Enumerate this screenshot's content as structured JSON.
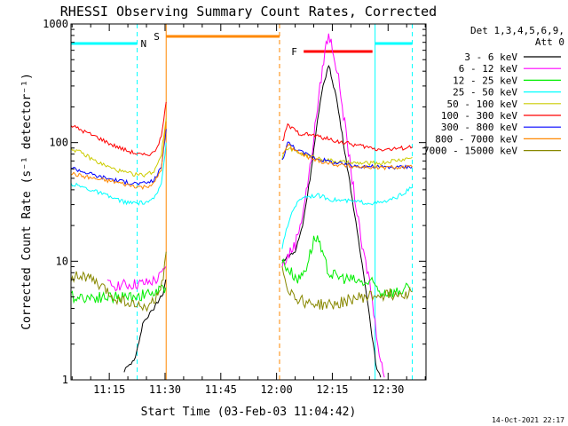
{
  "chart_data": {
    "type": "line",
    "title": "RHESSI Observing Summary Count Rates, Corrected",
    "xlabel": "Start Time (03-Feb-03 11:04:42)",
    "ylabel": "Corrected Count Rate (s⁻¹ detector⁻¹)",
    "yscale": "log",
    "xlim_minutes_after_11": [
      4.7,
      45.0
    ],
    "ylim": [
      1,
      1000
    ],
    "x_ticks": [
      {
        "m": 15,
        "label": "11:15"
      },
      {
        "m": 30,
        "label": "11:30"
      },
      {
        "m": 45,
        "label": "11:45"
      },
      {
        "m": 60,
        "label": "12:00"
      },
      {
        "m": 75,
        "label": "12:15"
      },
      {
        "m": 90,
        "label": "12:30"
      }
    ],
    "y_ticks": [
      {
        "v": 1,
        "label": "1"
      },
      {
        "v": 10,
        "label": "10"
      },
      {
        "v": 100,
        "label": "100"
      },
      {
        "v": 1000,
        "label": "1000"
      }
    ],
    "legend": {
      "header": [
        "Det 1,3,4,5,6,9,",
        "Att 0"
      ],
      "placement": "right",
      "entries": [
        {
          "label": "3 - 6 keV",
          "color": "#000000"
        },
        {
          "label": "6 - 12 keV",
          "color": "#ff00ff"
        },
        {
          "label": "12 - 25 keV",
          "color": "#00ee00"
        },
        {
          "label": "25 - 50 keV",
          "color": "#00ffff"
        },
        {
          "label": "50 - 100 keV",
          "color": "#cccc00"
        },
        {
          "label": "100 - 300 keV",
          "color": "#ff0000"
        },
        {
          "label": "300 - 800 keV",
          "color": "#0000ff"
        },
        {
          "label": "800 - 7000 keV",
          "color": "#ff8800"
        },
        {
          "label": "7000 - 15000 keV",
          "color": "#888800"
        }
      ]
    },
    "flags": [
      {
        "label": "N",
        "color": "#00ffff",
        "spans": [
          [
            4.7,
            22.5
          ],
          [
            86.5,
            96.5
          ]
        ]
      },
      {
        "label": "S",
        "color": "#ff8800",
        "spans": [
          [
            30.3,
            60.8
          ]
        ]
      },
      {
        "label": "F",
        "color": "#ff0000",
        "spans": [
          [
            67.3,
            85.8
          ]
        ]
      }
    ],
    "markers": [
      {
        "m": 4.7,
        "color": "#00ffff",
        "style": "solid"
      },
      {
        "m": 22.5,
        "color": "#00ffff",
        "style": "dashed"
      },
      {
        "m": 86.5,
        "color": "#00ffff",
        "style": "solid"
      },
      {
        "m": 96.5,
        "color": "#00ffff",
        "style": "dashed"
      },
      {
        "m": 30.3,
        "color": "#ff8800",
        "style": "solid"
      },
      {
        "m": 60.8,
        "color": "#ff8800",
        "style": "dashed"
      }
    ],
    "gap": [
      30.5,
      61.2
    ],
    "series": [
      {
        "name": "3 - 6 keV",
        "color": "#000000",
        "points": [
          [
            19.0,
            1.2
          ],
          [
            22.0,
            1.5
          ],
          [
            24.0,
            3.0
          ],
          [
            27.0,
            4.0
          ],
          [
            29.5,
            5.5
          ],
          [
            30.2,
            7
          ],
          [
            61.5,
            10
          ],
          [
            63,
            11
          ],
          [
            65,
            12
          ],
          [
            67,
            20
          ],
          [
            69,
            50
          ],
          [
            71,
            150
          ],
          [
            72.5,
            300
          ],
          [
            74,
            450
          ],
          [
            76,
            250
          ],
          [
            78,
            100
          ],
          [
            80,
            40
          ],
          [
            82,
            15
          ],
          [
            84,
            6
          ],
          [
            86,
            2
          ],
          [
            87,
            1.2
          ],
          [
            88,
            1.05
          ]
        ]
      },
      {
        "name": "6 - 12 keV",
        "color": "#ff00ff",
        "points": [
          [
            14.5,
            6.3
          ],
          [
            20,
            6.3
          ],
          [
            25,
            6.5
          ],
          [
            28,
            7
          ],
          [
            29.5,
            8
          ],
          [
            30.2,
            9
          ],
          [
            61.5,
            9
          ],
          [
            63,
            11
          ],
          [
            65,
            14
          ],
          [
            67,
            25
          ],
          [
            69,
            60
          ],
          [
            71,
            200
          ],
          [
            73,
            600
          ],
          [
            74,
            800
          ],
          [
            75,
            650
          ],
          [
            77,
            300
          ],
          [
            79,
            100
          ],
          [
            81,
            35
          ],
          [
            83,
            13
          ],
          [
            85,
            7
          ],
          [
            86.5,
            3
          ],
          [
            88,
            1.5
          ],
          [
            89,
            1.05
          ]
        ]
      },
      {
        "name": "12 - 25 keV",
        "color": "#00ee00",
        "points": [
          [
            4.7,
            5.0
          ],
          [
            12,
            5.0
          ],
          [
            16,
            5.0
          ],
          [
            20,
            5.0
          ],
          [
            24,
            5.2
          ],
          [
            28,
            5.5
          ],
          [
            30.2,
            6
          ],
          [
            61.5,
            10
          ],
          [
            64,
            8
          ],
          [
            66,
            7
          ],
          [
            68,
            9
          ],
          [
            70,
            15
          ],
          [
            71,
            16
          ],
          [
            72,
            12
          ],
          [
            74,
            8
          ],
          [
            76,
            7.5
          ],
          [
            80,
            7
          ],
          [
            84,
            6.5
          ],
          [
            86,
            6.5
          ],
          [
            88,
            5.5
          ],
          [
            92,
            5.5
          ],
          [
            96,
            6
          ]
        ]
      },
      {
        "name": "25 - 50 keV",
        "color": "#00ffff",
        "points": [
          [
            4.7,
            45
          ],
          [
            8,
            42
          ],
          [
            12,
            38
          ],
          [
            16,
            34
          ],
          [
            20,
            31
          ],
          [
            24,
            31
          ],
          [
            27,
            33
          ],
          [
            29,
            45
          ],
          [
            30.3,
            100
          ],
          [
            61.5,
            13
          ],
          [
            63,
            20
          ],
          [
            64.5,
            28
          ],
          [
            67,
            35
          ],
          [
            71,
            36
          ],
          [
            75,
            33
          ],
          [
            80,
            32
          ],
          [
            85,
            31
          ],
          [
            88,
            31
          ],
          [
            91,
            33
          ],
          [
            94,
            37
          ],
          [
            96.5,
            42
          ]
        ]
      },
      {
        "name": "50 - 100 keV",
        "color": "#cccc00",
        "points": [
          [
            4.7,
            90
          ],
          [
            8,
            80
          ],
          [
            12,
            68
          ],
          [
            16,
            60
          ],
          [
            20,
            55
          ],
          [
            24,
            53
          ],
          [
            27,
            57
          ],
          [
            29,
            80
          ],
          [
            30.3,
            160
          ],
          [
            61.5,
            75
          ],
          [
            63,
            90
          ],
          [
            66,
            82
          ],
          [
            70,
            75
          ],
          [
            75,
            70
          ],
          [
            80,
            67
          ],
          [
            85,
            67
          ],
          [
            88,
            67
          ],
          [
            91,
            70
          ],
          [
            94,
            72
          ],
          [
            96.5,
            75
          ]
        ]
      },
      {
        "name": "100 - 300 keV",
        "color": "#ff0000",
        "points": [
          [
            4.7,
            140
          ],
          [
            8,
            125
          ],
          [
            12,
            110
          ],
          [
            16,
            95
          ],
          [
            20,
            85
          ],
          [
            24,
            78
          ],
          [
            27,
            82
          ],
          [
            29,
            110
          ],
          [
            30.3,
            220
          ],
          [
            61.5,
            100
          ],
          [
            63,
            140
          ],
          [
            66,
            120
          ],
          [
            70,
            115
          ],
          [
            75,
            105
          ],
          [
            80,
            97
          ],
          [
            84,
            92
          ],
          [
            87,
            88
          ],
          [
            91,
            88
          ],
          [
            94,
            90
          ],
          [
            96.5,
            92
          ]
        ]
      },
      {
        "name": "300 - 800 keV",
        "color": "#0000ff",
        "points": [
          [
            4.7,
            62
          ],
          [
            8,
            57
          ],
          [
            12,
            52
          ],
          [
            16,
            49
          ],
          [
            20,
            46
          ],
          [
            24,
            45
          ],
          [
            27,
            48
          ],
          [
            29,
            62
          ],
          [
            30.3,
            130
          ],
          [
            61.5,
            70
          ],
          [
            63,
            100
          ],
          [
            66,
            85
          ],
          [
            70,
            75
          ],
          [
            75,
            68
          ],
          [
            80,
            64
          ],
          [
            85,
            63
          ],
          [
            88,
            62
          ],
          [
            91,
            62
          ],
          [
            94,
            62
          ],
          [
            96.5,
            63
          ]
        ]
      },
      {
        "name": "800 - 7000 keV",
        "color": "#ff8800",
        "points": [
          [
            4.7,
            55
          ],
          [
            8,
            52
          ],
          [
            12,
            49
          ],
          [
            16,
            47
          ],
          [
            20,
            44
          ],
          [
            24,
            42
          ],
          [
            27,
            45
          ],
          [
            29,
            60
          ],
          [
            30.3,
            150
          ],
          [
            61.5,
            80
          ],
          [
            63,
            95
          ],
          [
            66,
            82
          ],
          [
            70,
            72
          ],
          [
            75,
            66
          ],
          [
            80,
            63
          ],
          [
            85,
            62
          ],
          [
            88,
            61
          ],
          [
            91,
            62
          ],
          [
            94,
            62
          ],
          [
            96.5,
            62
          ]
        ]
      },
      {
        "name": "7000 - 15000 keV",
        "color": "#888800",
        "points": [
          [
            4.7,
            7.5
          ],
          [
            8,
            7.5
          ],
          [
            10,
            7
          ],
          [
            13,
            6
          ],
          [
            16,
            5
          ],
          [
            20,
            4.5
          ],
          [
            24,
            4.0
          ],
          [
            27,
            4.5
          ],
          [
            29.5,
            7
          ],
          [
            30.3,
            12
          ],
          [
            61.5,
            9
          ],
          [
            63,
            6
          ],
          [
            65,
            5
          ],
          [
            68,
            4.5
          ],
          [
            72,
            4.3
          ],
          [
            76,
            4.3
          ],
          [
            80,
            4.8
          ],
          [
            84,
            5.0
          ],
          [
            88,
            5.2
          ],
          [
            92,
            5.3
          ],
          [
            96.5,
            5.5
          ]
        ]
      }
    ],
    "footer_date": "14-Oct-2021 22:17"
  }
}
